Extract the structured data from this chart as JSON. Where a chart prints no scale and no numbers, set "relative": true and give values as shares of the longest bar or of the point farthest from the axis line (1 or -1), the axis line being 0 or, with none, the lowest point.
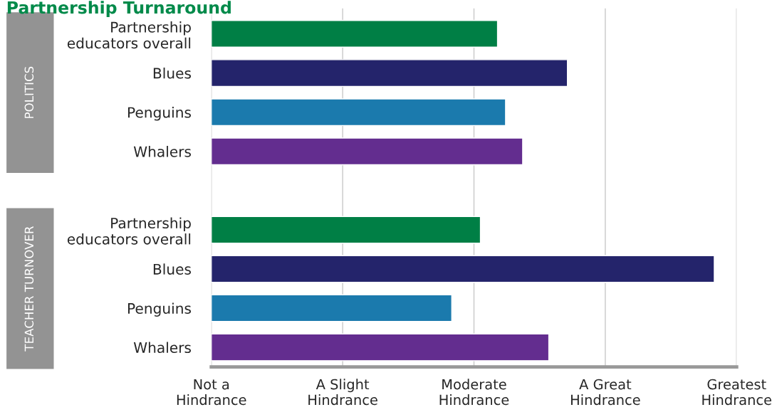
{
  "chart_data": {
    "type": "bar",
    "orientation": "horizontal",
    "relative": true,
    "title": "Partnership Turnaround",
    "categories": [
      "Partnership\neducators overall",
      "Blues",
      "Penguins",
      "Whalers",
      null,
      "Partnership\neducators overall",
      "Blues",
      "Penguins",
      "Whalers"
    ],
    "values": [
      0.569,
      0.708,
      0.585,
      0.619,
      null,
      0.535,
      1,
      0.478,
      0.671
    ],
    "colors": [
      "#007f45",
      "#24246b",
      "#1b7aad",
      "#632d8f",
      "#ffffff",
      "#007f45",
      "#24246b",
      "#1b7aad",
      "#632d8f"
    ],
    "annotations": [
      "POLITICS",
      "TEACHER TURNOVER",
      "Not a\nHindrance",
      "A Slight\nHindrance",
      "Moderate\nHindrance",
      "A Great\nHindrance",
      "Greatest\nHindrance"
    ],
    "grid": "x"
  }
}
